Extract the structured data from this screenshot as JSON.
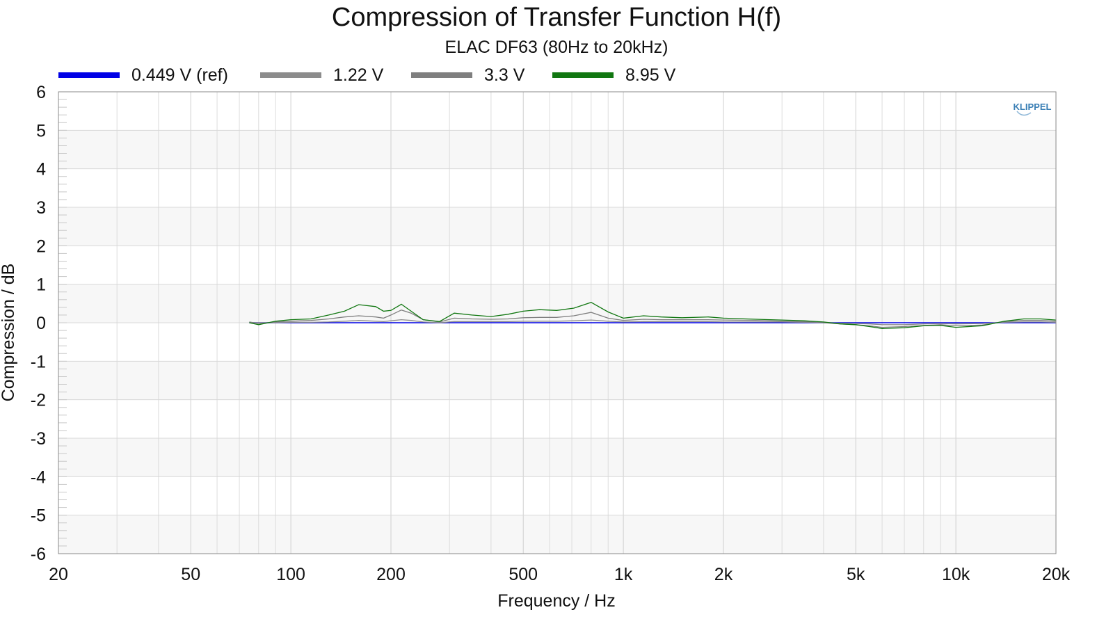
{
  "chart_data": {
    "type": "line",
    "title": "Compression of Transfer Function H(f)",
    "subtitle": "ELAC DF63 (80Hz to 20kHz)",
    "xlabel": "Frequency / Hz",
    "ylabel": "Compression / dB",
    "x_scale": "log",
    "xlim": [
      20,
      20000
    ],
    "ylim": [
      -6,
      6
    ],
    "grid": true,
    "legend_position": "top",
    "x_ticks": [
      {
        "value": 20,
        "label": "20"
      },
      {
        "value": 50,
        "label": "50"
      },
      {
        "value": 100,
        "label": "100"
      },
      {
        "value": 200,
        "label": "200"
      },
      {
        "value": 500,
        "label": "500"
      },
      {
        "value": 1000,
        "label": "1k"
      },
      {
        "value": 2000,
        "label": "2k"
      },
      {
        "value": 5000,
        "label": "5k"
      },
      {
        "value": 10000,
        "label": "10k"
      },
      {
        "value": 20000,
        "label": "20k"
      }
    ],
    "y_ticks": [
      6,
      5,
      4,
      3,
      2,
      1,
      0,
      -1,
      -2,
      -3,
      -4,
      -5,
      -6
    ],
    "x": [
      75,
      80,
      90,
      100,
      115,
      130,
      145,
      160,
      180,
      190,
      200,
      215,
      230,
      250,
      280,
      310,
      350,
      400,
      450,
      500,
      560,
      630,
      710,
      800,
      900,
      1000,
      1150,
      1300,
      1500,
      1800,
      2000,
      2500,
      3000,
      3500,
      4000,
      4500,
      5000,
      5500,
      6000,
      7000,
      8000,
      9000,
      10000,
      12000,
      14000,
      16000,
      18000,
      20000
    ],
    "series": [
      {
        "name": "0.449 V (ref)",
        "color": "#0000e6",
        "values": [
          0,
          0,
          0,
          0,
          0,
          0,
          0,
          0,
          0,
          0,
          0,
          0,
          0,
          0,
          0,
          0,
          0,
          0,
          0,
          0,
          0,
          0,
          0,
          0,
          0,
          0,
          0,
          0,
          0,
          0,
          0,
          0,
          0,
          0,
          0,
          0,
          0,
          0,
          0,
          0,
          0,
          0,
          0,
          0,
          0,
          0,
          0,
          0
        ]
      },
      {
        "name": "1.22 V",
        "color": "#8c8c8c",
        "values": [
          0.0,
          0.0,
          0.0,
          0.01,
          0.01,
          0.02,
          0.04,
          0.06,
          0.04,
          0.03,
          0.05,
          0.08,
          0.06,
          0.02,
          0.0,
          0.03,
          0.03,
          0.03,
          0.03,
          0.04,
          0.04,
          0.04,
          0.05,
          0.07,
          0.04,
          0.02,
          0.03,
          0.03,
          0.03,
          0.03,
          0.02,
          0.02,
          0.02,
          0.01,
          0.0,
          -0.01,
          -0.02,
          -0.03,
          -0.05,
          -0.05,
          -0.03,
          -0.02,
          -0.03,
          -0.02,
          0.01,
          0.02,
          0.02,
          0.01
        ]
      },
      {
        "name": "3.3 V",
        "color": "#7f7f7f",
        "values": [
          0.02,
          -0.02,
          0.02,
          0.04,
          0.06,
          0.1,
          0.15,
          0.18,
          0.15,
          0.12,
          0.2,
          0.33,
          0.25,
          0.08,
          0.02,
          0.12,
          0.1,
          0.09,
          0.1,
          0.13,
          0.14,
          0.14,
          0.18,
          0.27,
          0.12,
          0.06,
          0.09,
          0.08,
          0.08,
          0.08,
          0.07,
          0.06,
          0.04,
          0.03,
          0.0,
          -0.03,
          -0.05,
          -0.08,
          -0.12,
          -0.1,
          -0.07,
          -0.05,
          -0.08,
          -0.06,
          0.03,
          0.06,
          0.06,
          0.04
        ]
      },
      {
        "name": "8.95 V",
        "color": "#117711",
        "values": [
          0.0,
          -0.05,
          0.04,
          0.08,
          0.1,
          0.2,
          0.3,
          0.47,
          0.42,
          0.3,
          0.32,
          0.48,
          0.3,
          0.08,
          0.03,
          0.25,
          0.2,
          0.16,
          0.22,
          0.3,
          0.34,
          0.32,
          0.38,
          0.53,
          0.28,
          0.12,
          0.18,
          0.15,
          0.13,
          0.15,
          0.12,
          0.09,
          0.07,
          0.05,
          0.02,
          -0.03,
          -0.05,
          -0.1,
          -0.15,
          -0.13,
          -0.08,
          -0.07,
          -0.12,
          -0.08,
          0.04,
          0.1,
          0.1,
          0.07
        ]
      }
    ]
  },
  "logo": {
    "text": "KLIPPEL"
  }
}
